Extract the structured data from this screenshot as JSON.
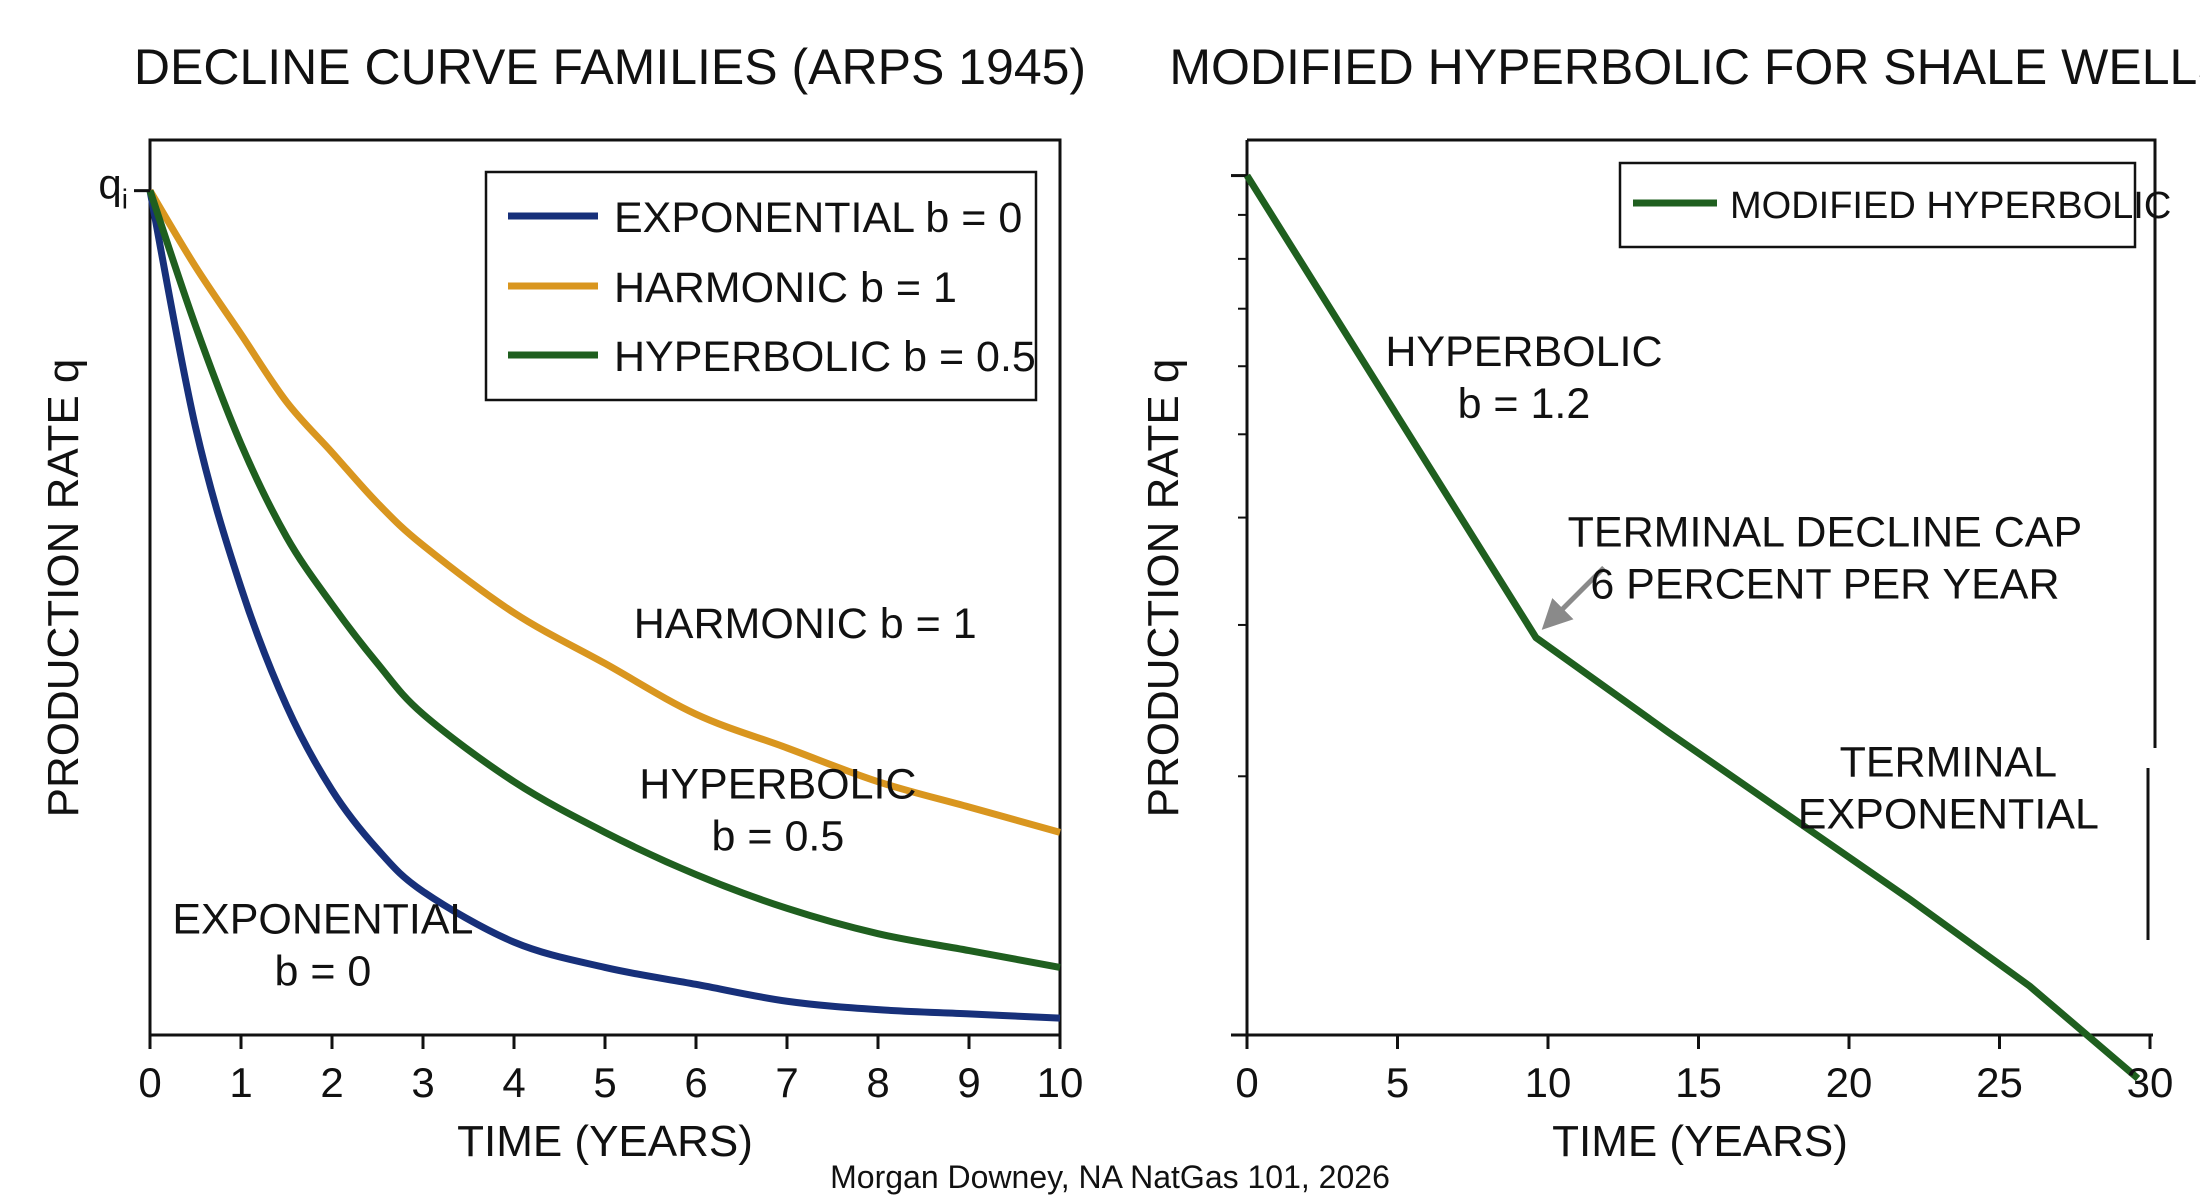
{
  "credit": "Morgan Downey, NA NatGas 101, 2026",
  "colors": {
    "exponential": "#17307a",
    "harmonic": "#d9961f",
    "hyperbolic": "#1f5f1f",
    "modified": "#1f5f1f",
    "arrow": "#8a8a8a",
    "axis": "#111111"
  },
  "chart_data": [
    {
      "type": "line",
      "title": "DECLINE CURVE FAMILIES (ARPS 1945)",
      "xlabel": "TIME (YEARS)",
      "ylabel": "PRODUCTION RATE q",
      "xlim": [
        0,
        10
      ],
      "ylim": [
        0,
        1.06
      ],
      "x_ticks": [
        0,
        1,
        2,
        3,
        4,
        5,
        6,
        7,
        8,
        9,
        10
      ],
      "y_tick": {
        "value": 1.0,
        "label": "q",
        "subscript": "i"
      },
      "grid": false,
      "legend": {
        "position": "top-right",
        "entries": [
          "EXPONENTIAL b = 0",
          "HARMONIC b = 1",
          "HYPERBOLIC b = 0.5"
        ]
      },
      "series": [
        {
          "name": "EXPONENTIAL b = 0",
          "b": 0,
          "x": [
            0,
            0.5,
            1,
            1.5,
            2,
            2.5,
            3,
            4,
            5,
            6,
            7,
            8,
            9,
            10
          ],
          "values": [
            1.0,
            0.72,
            0.53,
            0.39,
            0.29,
            0.22,
            0.17,
            0.11,
            0.08,
            0.06,
            0.04,
            0.03,
            0.025,
            0.02
          ]
        },
        {
          "name": "HARMONIC b = 1",
          "b": 1,
          "x": [
            0,
            0.5,
            1,
            1.5,
            2,
            2.5,
            3,
            4,
            5,
            6,
            7,
            8,
            9,
            10
          ],
          "values": [
            1.0,
            0.91,
            0.83,
            0.75,
            0.69,
            0.63,
            0.58,
            0.5,
            0.44,
            0.38,
            0.34,
            0.3,
            0.27,
            0.24
          ]
        },
        {
          "name": "HYPERBOLIC b = 0.5",
          "b": 0.5,
          "x": [
            0,
            0.5,
            1,
            1.5,
            2,
            2.5,
            3,
            4,
            5,
            6,
            7,
            8,
            9,
            10
          ],
          "values": [
            1.0,
            0.84,
            0.7,
            0.59,
            0.51,
            0.44,
            0.38,
            0.3,
            0.24,
            0.19,
            0.15,
            0.12,
            0.1,
            0.08
          ]
        }
      ],
      "annotations": [
        {
          "lines": [
            "HARMONIC b = 1"
          ],
          "x": 7.2,
          "y": 0.47
        },
        {
          "lines": [
            "HYPERBOLIC",
            "b = 0.5"
          ],
          "x": 6.9,
          "y": 0.28
        },
        {
          "lines": [
            "EXPONENTIAL",
            "b = 0"
          ],
          "x": 1.9,
          "y": 0.12
        }
      ]
    },
    {
      "type": "line",
      "title": "MODIFIED HYPERBOLIC FOR SHALE WELLS",
      "xlabel": "TIME (YEARS)",
      "ylabel": "PRODUCTION RATE q",
      "xlim": [
        0,
        30
      ],
      "ylim": [
        0.1,
        1.1
      ],
      "y_scale": "log",
      "y_ticks_unlabeled": true,
      "x_ticks": [
        0,
        5,
        10,
        15,
        20,
        25,
        30
      ],
      "grid": false,
      "legend": {
        "position": "top-right",
        "entries": [
          "MODIFIED HYPERBOLIC"
        ]
      },
      "series": [
        {
          "name": "MODIFIED HYPERBOLIC",
          "x": [
            0,
            9.6,
            14,
            18,
            22,
            26,
            29.6
          ],
          "values": [
            1.0,
            0.29,
            0.225,
            0.18,
            0.144,
            0.114,
            0.089
          ]
        }
      ],
      "annotations": [
        {
          "lines": [
            "HYPERBOLIC",
            "b = 1.2"
          ],
          "x": 9.2,
          "y": 0.6
        },
        {
          "lines": [
            "TERMINAL DECLINE CAP",
            "6 PERCENT PER YEAR"
          ],
          "x": 19.2,
          "y": 0.37
        },
        {
          "lines": [
            "TERMINAL",
            "EXPONENTIAL"
          ],
          "x": 23.3,
          "y": 0.2
        }
      ],
      "arrow_to": {
        "x": 9.6,
        "y": 0.29
      }
    }
  ]
}
